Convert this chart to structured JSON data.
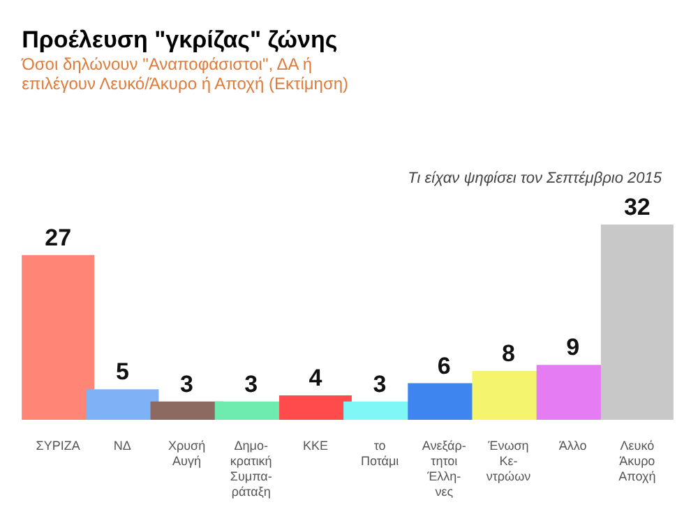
{
  "chart_data": {
    "type": "bar",
    "title": "Προέλευση \"γκρίζας\" ζώνης",
    "subtitle": [
      "Όσοι δηλώνουν \"Αναποφάσιστοι\", ΔΑ ή",
      "επιλέγουν Λευκό/Άκυρο ή Αποχή (Εκτίμηση)"
    ],
    "annotations": [
      "Τι είχαν ψηφίσει τον Σεπτέμβριο 2015"
    ],
    "categories": [
      "ΣΥΡΙΖΑ",
      "ΝΔ",
      "Χρυσή\nΑυγή",
      "Δημο-\nκρατική\nΣυμπα-\nράταξη",
      "ΚΚΕ",
      "το\nΠοτάμι",
      "Ανεξάρ-\nτητοι\nΈλλη-\nνες",
      "Ένωση\nΚε-\nντρώων",
      "Άλλο",
      "Λευκό\nΆκυρο\nΑποχή"
    ],
    "values": [
      27,
      5,
      3,
      3,
      4,
      3,
      6,
      8,
      9,
      32
    ],
    "colors": [
      "#ff8577",
      "#7fb1f7",
      "#8c6a62",
      "#6eecb0",
      "#ff4b4b",
      "#7ff7f7",
      "#3f85f0",
      "#f4f56d",
      "#e57cf4",
      "#c8c8c8"
    ],
    "data_labels": true
  }
}
